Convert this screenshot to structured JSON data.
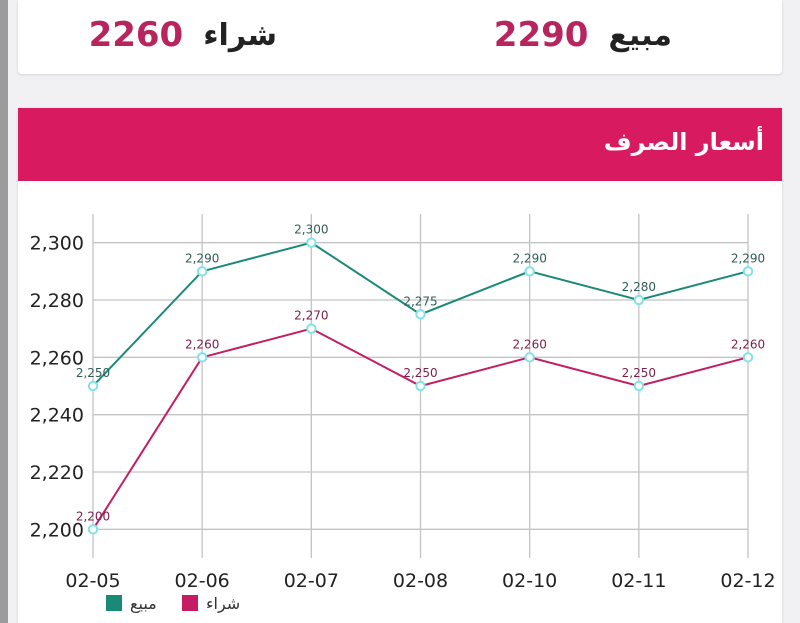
{
  "rates": {
    "sell_label": "مبيع",
    "sell_value": "2290",
    "buy_label": "شراء",
    "buy_value": "2260"
  },
  "chart_card": {
    "title": "أسعار الصرف"
  },
  "colors": {
    "accent": "#d81b60",
    "sell_line": "#1a8a78",
    "buy_line": "#c41d63",
    "marker_stroke": "#7fe3ea",
    "value_text": "#b8245e"
  },
  "chart_data": {
    "type": "line",
    "categories": [
      "02-05",
      "02-06",
      "02-07",
      "02-08",
      "02-10",
      "02-11",
      "02-12"
    ],
    "series": [
      {
        "name": "مبيع",
        "values": [
          2250,
          2290,
          2300,
          2275,
          2290,
          2280,
          2290
        ]
      },
      {
        "name": "شراء",
        "values": [
          2200,
          2260,
          2270,
          2250,
          2260,
          2250,
          2260
        ]
      }
    ],
    "data_labels": [
      [
        "2,250",
        "2,290",
        "2,300",
        "2,275",
        "2,290",
        "2,280",
        "2,290"
      ],
      [
        "2,200",
        "2,260",
        "2,270",
        "2,250",
        "2,260",
        "2,250",
        "2,260"
      ]
    ],
    "yticks": [
      2200,
      2220,
      2240,
      2260,
      2280,
      2300
    ],
    "ytick_labels": [
      "2,200",
      "2,220",
      "2,240",
      "2,260",
      "2,280",
      "2,300"
    ],
    "ylim": [
      2190,
      2310
    ],
    "grid": true,
    "legend_position": "bottom-left",
    "title": "",
    "xlabel": "",
    "ylabel": ""
  }
}
